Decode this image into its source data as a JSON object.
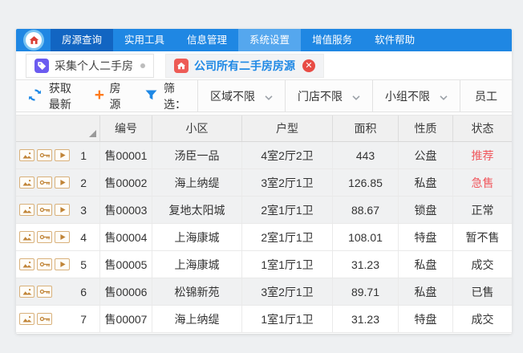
{
  "menu": {
    "items": [
      {
        "label": "房源查询"
      },
      {
        "label": "实用工具"
      },
      {
        "label": "信息管理"
      },
      {
        "label": "系统设置"
      },
      {
        "label": "增值服务"
      },
      {
        "label": "软件帮助"
      }
    ]
  },
  "tabs": [
    {
      "label": "采集个人二手房",
      "icon": "tag"
    },
    {
      "label": "公司所有二手房房源",
      "icon": "house",
      "closable": true
    }
  ],
  "toolbar": {
    "refresh_label": "获取最新",
    "add_label": "房源",
    "filter_label": "筛选：",
    "filters": [
      {
        "label": "区域不限"
      },
      {
        "label": "门店不限"
      },
      {
        "label": "小组不限"
      }
    ],
    "employee_label": "员工"
  },
  "table": {
    "columns": [
      "编号",
      "小区",
      "户型",
      "面积",
      "性质",
      "状态"
    ],
    "rows": [
      {
        "num": "1",
        "icons": [
          "image",
          "key",
          "play"
        ],
        "code": "售00001",
        "community": "汤臣一品",
        "layout": "4室2厅2卫",
        "area": "443",
        "nature": "公盘",
        "status": "推荐",
        "status_red": true,
        "shaded": true
      },
      {
        "num": "2",
        "icons": [
          "image",
          "key",
          "play"
        ],
        "code": "售00002",
        "community": "海上纳缇",
        "layout": "3室2厅1卫",
        "area": "126.85",
        "nature": "私盘",
        "status": "急售",
        "status_red": true,
        "shaded": true
      },
      {
        "num": "3",
        "icons": [
          "image",
          "key",
          "play"
        ],
        "code": "售00003",
        "community": "复地太阳城",
        "layout": "2室1厅1卫",
        "area": "88.67",
        "nature": "锁盘",
        "status": "正常",
        "status_red": false,
        "shaded": true
      },
      {
        "num": "4",
        "icons": [
          "image",
          "key",
          "play"
        ],
        "code": "售00004",
        "community": "上海康城",
        "layout": "2室1厅1卫",
        "area": "108.01",
        "nature": "特盘",
        "status": "暂不售",
        "status_red": false,
        "shaded": false
      },
      {
        "num": "5",
        "icons": [
          "image",
          "key",
          "play"
        ],
        "code": "售00005",
        "community": "上海康城",
        "layout": "1室1厅1卫",
        "area": "31.23",
        "nature": "私盘",
        "status": "成交",
        "status_red": false,
        "shaded": false
      },
      {
        "num": "6",
        "icons": [
          "image",
          "key"
        ],
        "code": "售00006",
        "community": "松锦新苑",
        "layout": "3室2厅1卫",
        "area": "89.71",
        "nature": "私盘",
        "status": "已售",
        "status_red": false,
        "shaded": true
      },
      {
        "num": "7",
        "icons": [
          "image",
          "key"
        ],
        "code": "售00007",
        "community": "海上纳缇",
        "layout": "1室1厅1卫",
        "area": "31.23",
        "nature": "特盘",
        "status": "成交",
        "status_red": false,
        "shaded": false
      }
    ]
  },
  "colors": {
    "menubar_blue": "#1f87e3",
    "menu_active_dark": "#1265c2",
    "menu_highlight": "#55a7ee",
    "accent_blue": "#1e88e5",
    "status_red": "#f0575d",
    "plus_orange": "#ff7b1c",
    "tag_purple": "#6b5bf0",
    "house_red": "#ed5b56"
  }
}
